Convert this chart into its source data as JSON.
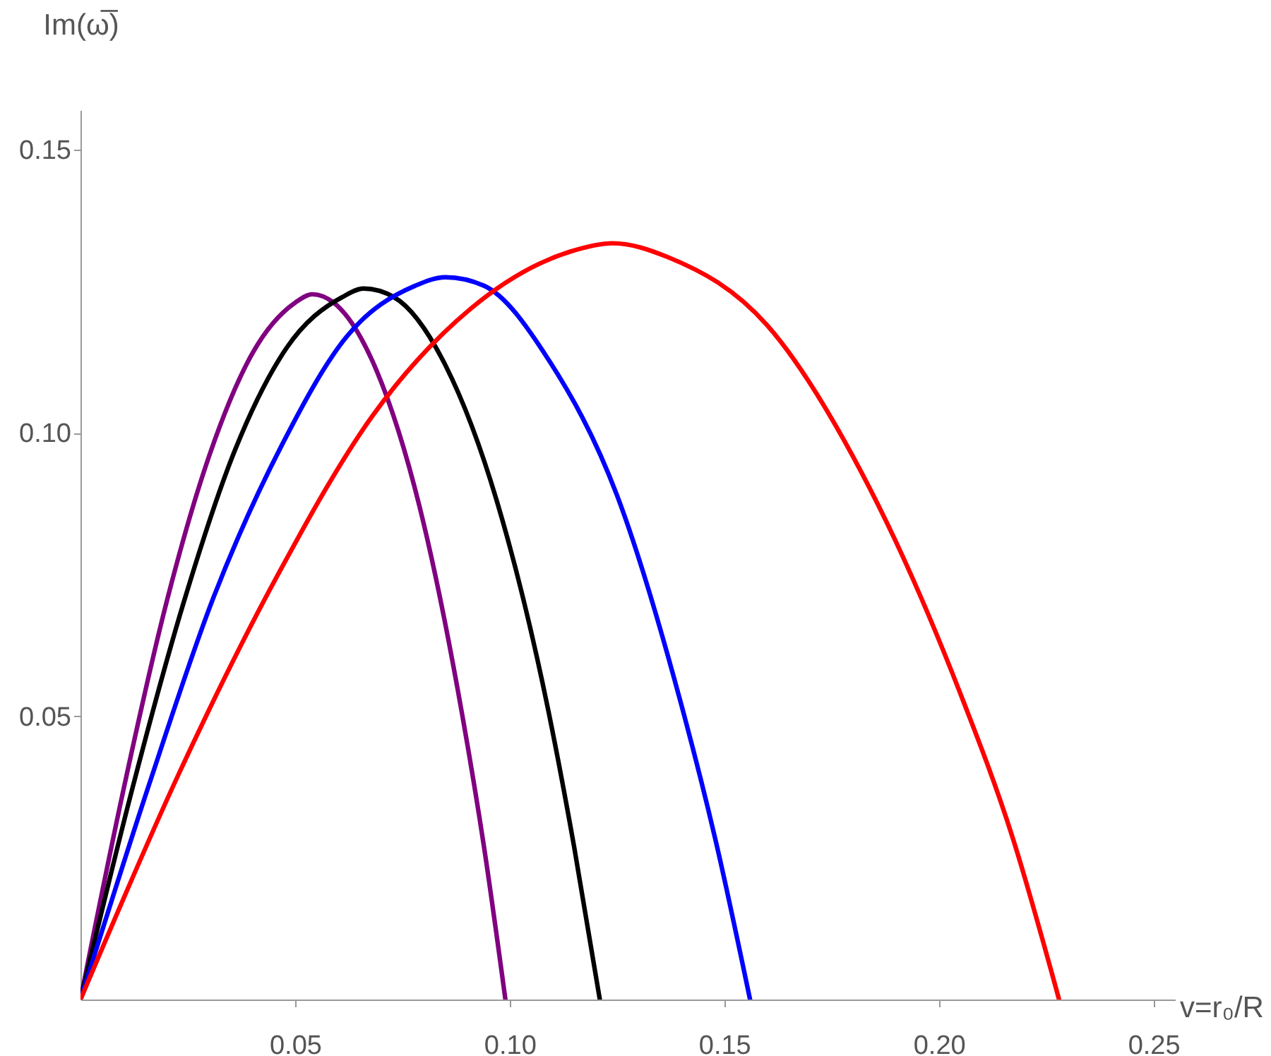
{
  "chart_data": {
    "type": "line",
    "xlabel": "v=r₀/R",
    "ylabel": "Im(ω̅)",
    "xlim": [
      0,
      0.255
    ],
    "ylim": [
      0,
      0.157
    ],
    "xticks": [
      0.05,
      {
        "value": 0.1,
        "label": "0.10"
      },
      0.15,
      {
        "value": 0.2,
        "label": "0.20"
      },
      0.25
    ],
    "yticks": [
      0.05,
      {
        "value": 0.1,
        "label": "0.10"
      },
      0.15
    ],
    "grid": false,
    "line_style": "solid",
    "series": [
      {
        "color": "#800080",
        "x": [
          0,
          0.01,
          0.02,
          0.03,
          0.04,
          0.05,
          0.054,
          0.059,
          0.069,
          0.079,
          0.089,
          0.094,
          0.099
        ],
        "values": [
          0,
          0.037,
          0.07,
          0.096,
          0.114,
          0.123,
          0.1245,
          0.123,
          0.111,
          0.087,
          0.05,
          0.027,
          0
        ]
      },
      {
        "color": "#000000",
        "x": [
          0,
          0.012,
          0.024,
          0.036,
          0.048,
          0.061,
          0.066,
          0.073,
          0.085,
          0.097,
          0.109,
          0.115,
          0.121
        ],
        "values": [
          0,
          0.037,
          0.07,
          0.097,
          0.115,
          0.124,
          0.1255,
          0.124,
          0.112,
          0.088,
          0.051,
          0.027,
          0
        ]
      },
      {
        "color": "#0000ff",
        "x": [
          0,
          0.016,
          0.031,
          0.047,
          0.062,
          0.078,
          0.085,
          0.094,
          0.109,
          0.125,
          0.14,
          0.148,
          0.156
        ],
        "values": [
          0,
          0.038,
          0.071,
          0.098,
          0.117,
          0.126,
          0.1275,
          0.126,
          0.113,
          0.089,
          0.052,
          0.028,
          0
        ]
      },
      {
        "color": "#ff0000",
        "x": [
          0,
          0.023,
          0.046,
          0.068,
          0.091,
          0.114,
          0.124,
          0.137,
          0.16,
          0.182,
          0.205,
          0.217,
          0.228
        ],
        "values": [
          0,
          0.04,
          0.075,
          0.103,
          0.122,
          0.132,
          0.1335,
          0.131,
          0.119,
          0.093,
          0.054,
          0.029,
          0
        ]
      }
    ]
  }
}
